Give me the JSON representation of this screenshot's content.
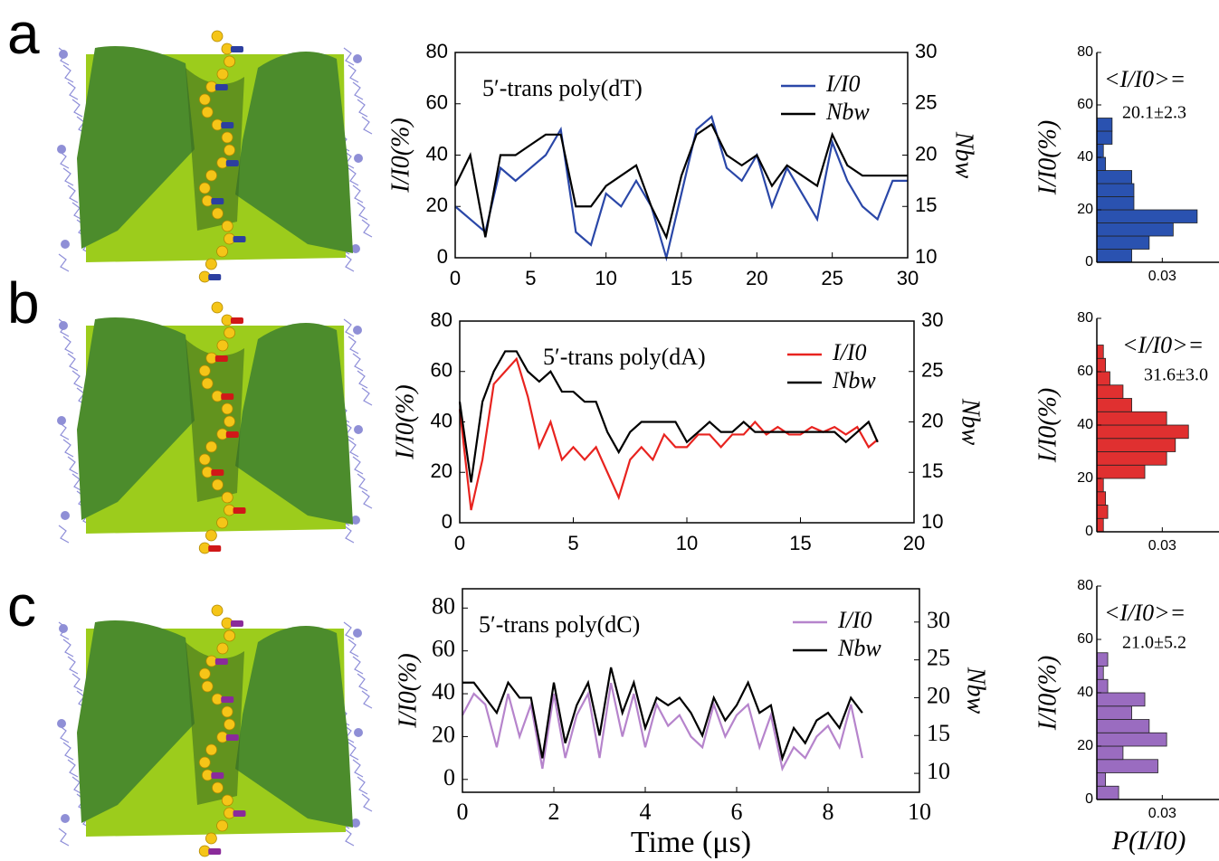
{
  "chart_data": [
    {
      "type": "line",
      "panel_label": "a",
      "title": "5′-trans poly(dT)",
      "ylabel": "I/I0(%)",
      "y2label": "Nbw",
      "legend": "upper right",
      "x": [
        0,
        1,
        2,
        3,
        4,
        5,
        6,
        7,
        8,
        9,
        10,
        11,
        12,
        13,
        14,
        15,
        16,
        17,
        18,
        19,
        20,
        21,
        22,
        23,
        24,
        25,
        26,
        27,
        28,
        29,
        30
      ],
      "series": [
        {
          "name": "I/I0",
          "color": "#2a47a8",
          "values": [
            20,
            15,
            10,
            35,
            30,
            35,
            40,
            50,
            10,
            5,
            25,
            20,
            30,
            20,
            0,
            25,
            50,
            55,
            35,
            30,
            40,
            20,
            35,
            25,
            15,
            45,
            30,
            20,
            15,
            30,
            30
          ]
        },
        {
          "name": "Nbw",
          "color": "#000000",
          "axis": "y2",
          "values": [
            17,
            20,
            12,
            20,
            20,
            21,
            22,
            22,
            15,
            15,
            17,
            18,
            19,
            15,
            12,
            18,
            22,
            23,
            20,
            19,
            20,
            17,
            19,
            18,
            17,
            22,
            19,
            18,
            18,
            18,
            18
          ]
        }
      ],
      "xlim": [
        0,
        30
      ],
      "xticks": [
        0,
        5,
        10,
        15,
        20,
        25,
        30
      ],
      "ylim": [
        0,
        80
      ],
      "yticks": [
        0,
        20,
        40,
        60,
        80
      ],
      "y2lim": [
        10,
        30
      ],
      "y2ticks": [
        10,
        15,
        20,
        25,
        30
      ]
    },
    {
      "type": "histogram",
      "ylabel": "I/I0(%)",
      "annotations": [
        "<I/I0>=",
        "20.1±2.3"
      ],
      "color": "#2a52b0",
      "bins": [
        0,
        5,
        10,
        15,
        20,
        25,
        30,
        35,
        40,
        45,
        50,
        55
      ],
      "values": [
        0.016,
        0.024,
        0.035,
        0.046,
        0.017,
        0.017,
        0.016,
        0.004,
        0.003,
        0.007,
        0.007
      ],
      "xlim": [
        0,
        0.056
      ],
      "xticks": [
        0.03
      ],
      "ylim": [
        0,
        80
      ],
      "yticks": [
        0,
        20,
        40,
        60,
        80
      ]
    },
    {
      "type": "line",
      "panel_label": "b",
      "title": "5′-trans poly(dA)",
      "ylabel": "I/I0(%)",
      "y2label": "Nbw",
      "legend": "upper right",
      "x": [
        0,
        0.5,
        1,
        1.5,
        2,
        2.5,
        3,
        3.5,
        4,
        4.5,
        5,
        5.5,
        6,
        6.5,
        7,
        7.5,
        8,
        8.5,
        9,
        9.5,
        10,
        10.5,
        11,
        11.5,
        12,
        12.5,
        13,
        13.5,
        14,
        14.5,
        15,
        15.5,
        16,
        16.5,
        17,
        17.5,
        18,
        18.4
      ],
      "series": [
        {
          "name": "I/I0",
          "color": "#e8231f",
          "values": [
            45,
            5,
            25,
            55,
            60,
            65,
            50,
            30,
            40,
            25,
            30,
            25,
            30,
            20,
            10,
            25,
            30,
            25,
            35,
            30,
            30,
            35,
            35,
            30,
            35,
            35,
            40,
            35,
            38,
            35,
            35,
            38,
            36,
            38,
            35,
            38,
            30,
            33
          ]
        },
        {
          "name": "Nbw",
          "color": "#000000",
          "axis": "y2",
          "values": [
            22,
            14,
            22,
            25,
            27,
            27,
            25,
            24,
            25,
            23,
            23,
            22,
            22,
            19,
            17,
            19,
            20,
            20,
            20,
            20,
            18,
            19,
            20,
            19,
            19,
            20,
            19,
            19,
            19,
            19,
            19,
            19,
            19,
            19,
            18,
            19,
            20,
            18
          ]
        }
      ],
      "xlim": [
        0,
        20
      ],
      "xticks": [
        0,
        5,
        10,
        15,
        20
      ],
      "ylim": [
        0,
        80
      ],
      "yticks": [
        0,
        20,
        40,
        60,
        80
      ],
      "y2lim": [
        10,
        30
      ],
      "y2ticks": [
        10,
        15,
        20,
        25,
        30
      ]
    },
    {
      "type": "histogram",
      "ylabel": "I/I0(%)",
      "annotations": [
        "<I/I0>=",
        "31.6±3.0"
      ],
      "color": "#e03030",
      "bins": [
        0,
        5,
        10,
        15,
        20,
        25,
        30,
        35,
        40,
        45,
        50,
        55,
        60,
        65,
        70
      ],
      "values": [
        0.003,
        0.005,
        0.004,
        0.003,
        0.022,
        0.032,
        0.036,
        0.042,
        0.032,
        0.016,
        0.012,
        0.006,
        0.004,
        0.003
      ],
      "xlim": [
        0,
        0.056
      ],
      "xticks": [
        0.03
      ],
      "ylim": [
        0,
        80
      ],
      "yticks": [
        0,
        20,
        40,
        60,
        80
      ]
    },
    {
      "type": "line",
      "panel_label": "c",
      "title": "5′-trans poly(dC)",
      "ylabel": "I/I0(%)",
      "y2label": "Nbw",
      "xlabel": "Time (μs)",
      "legend": "upper right",
      "x": [
        0,
        0.25,
        0.5,
        0.75,
        1,
        1.25,
        1.5,
        1.75,
        2,
        2.25,
        2.5,
        2.75,
        3,
        3.25,
        3.5,
        3.75,
        4,
        4.25,
        4.5,
        4.75,
        5,
        5.25,
        5.5,
        5.75,
        6,
        6.25,
        6.5,
        6.75,
        7,
        7.25,
        7.5,
        7.75,
        8,
        8.25,
        8.5,
        8.75
      ],
      "series": [
        {
          "name": "I/I0",
          "color": "#b684cc",
          "values": [
            30,
            40,
            35,
            15,
            40,
            20,
            35,
            5,
            40,
            10,
            30,
            40,
            10,
            45,
            20,
            40,
            15,
            35,
            25,
            30,
            20,
            15,
            35,
            20,
            30,
            35,
            15,
            30,
            5,
            15,
            10,
            20,
            25,
            15,
            35,
            10
          ]
        },
        {
          "name": "Nbw",
          "color": "#000000",
          "axis": "y2",
          "values": [
            22,
            22,
            20,
            18,
            22,
            20,
            20,
            12,
            22,
            14,
            19,
            22,
            15,
            24,
            18,
            22,
            16,
            20,
            19,
            20,
            18,
            15,
            20,
            17,
            19,
            22,
            18,
            19,
            12,
            16,
            14,
            17,
            18,
            16,
            20,
            18
          ]
        }
      ],
      "xlim": [
        0,
        10
      ],
      "xticks": [
        0,
        2,
        4,
        6,
        8,
        10
      ],
      "ylim": [
        -6,
        89
      ],
      "yticks": [
        0,
        20,
        40,
        60,
        80
      ],
      "y2lim": [
        7.5,
        34.4
      ],
      "y2ticks": [
        10,
        15,
        20,
        25,
        30
      ]
    },
    {
      "type": "histogram",
      "ylabel": "I/I0(%)",
      "xlabel": "P(I/I0)",
      "annotations": [
        "<I/I0>=",
        "21.0±5.2"
      ],
      "color": "#9a6cc0",
      "bins": [
        0,
        5,
        10,
        15,
        20,
        25,
        30,
        35,
        40,
        45,
        50,
        55
      ],
      "values": [
        0.01,
        0.004,
        0.028,
        0.012,
        0.032,
        0.024,
        0.016,
        0.022,
        0.005,
        0.003,
        0.005
      ],
      "xlim": [
        0,
        0.056
      ],
      "xticks": [
        0.03
      ],
      "ylim": [
        0,
        80
      ],
      "yticks": [
        0,
        20,
        40,
        60,
        80
      ]
    }
  ]
}
